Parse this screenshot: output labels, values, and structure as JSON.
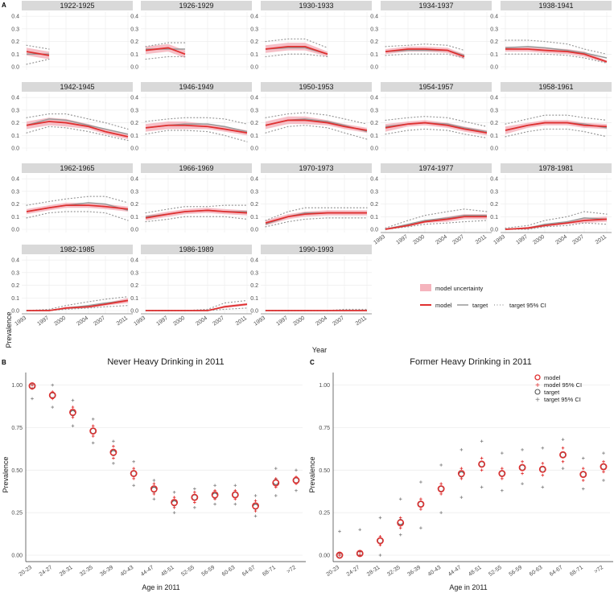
{
  "figure": {
    "panel_a_letter": "A",
    "panel_b_letter": "B",
    "panel_c_letter": "C",
    "colors": {
      "model": "#e03030",
      "band": "#f5b4bd",
      "target": "#999999",
      "strip": "#d9d9d9",
      "grid": "#ebebeb",
      "axis": "#333333"
    }
  },
  "panelA": {
    "y_axis_title": "Prevalence",
    "x_axis_title": "Year",
    "legend": {
      "band_label": "model uncertainty",
      "model_label": "model",
      "target_label": "target",
      "ci_label": "target 95% CI"
    }
  },
  "panelB": {
    "title": "Never Heavy Drinking in 2011",
    "y_axis_title": "Prevalence",
    "x_axis_title": "Age in 2011"
  },
  "panelC": {
    "title": "Former Heavy Drinking in 2011",
    "y_axis_title": "Prevalence",
    "x_axis_title": "Age in 2011",
    "legend": {
      "model": "model",
      "model_ci": "model 95% CI",
      "target": "target",
      "target_ci": "target 95% CI"
    }
  },
  "chart_data": [
    {
      "type": "line",
      "id": "cohort-prevalence",
      "title": "",
      "xlabel": "Year",
      "ylabel": "Prevalence",
      "x": [
        1993,
        1997,
        2000,
        2004,
        2007,
        2011
      ],
      "x_tick_labels": [
        "1993",
        "1997",
        "2000",
        "2004",
        "2007",
        "2011"
      ],
      "ylim": [
        0,
        0.42
      ],
      "y_ticks": [
        0.0,
        0.1,
        0.2,
        0.3,
        0.4
      ],
      "y_tick_labels": [
        "0.0",
        "0.1",
        "0.2",
        "0.3",
        "0.4"
      ],
      "facets": [
        {
          "label": "1922-1925",
          "model": [
            0.12,
            0.09,
            null,
            null,
            null,
            null
          ],
          "band": [
            0.03,
            0.03,
            null,
            null,
            null,
            null
          ],
          "target": [
            0.1,
            0.1,
            null,
            null,
            null,
            null
          ],
          "ci_lo": [
            0.02,
            0.06,
            null,
            null,
            null,
            null
          ],
          "ci_hi": [
            0.17,
            0.14,
            null,
            null,
            null,
            null
          ]
        },
        {
          "label": "1926-1929",
          "model": [
            0.13,
            0.15,
            0.1,
            null,
            null,
            null
          ],
          "band": [
            0.03,
            0.03,
            0.03,
            null,
            null,
            null
          ],
          "target": [
            0.14,
            0.14,
            0.14,
            null,
            null,
            null
          ],
          "ci_lo": [
            0.06,
            0.08,
            0.08,
            null,
            null,
            null
          ],
          "ci_hi": [
            0.16,
            0.19,
            0.19,
            null,
            null,
            null
          ]
        },
        {
          "label": "1930-1933",
          "model": [
            0.14,
            0.16,
            0.16,
            0.1,
            null,
            null
          ],
          "band": [
            0.03,
            0.03,
            0.03,
            0.02,
            null,
            null
          ],
          "target": [
            0.14,
            0.15,
            0.15,
            0.1,
            null,
            null
          ],
          "ci_lo": [
            0.08,
            0.1,
            0.1,
            0.08,
            null,
            null
          ],
          "ci_hi": [
            0.2,
            0.22,
            0.22,
            0.15,
            null,
            null
          ]
        },
        {
          "label": "1934-1937",
          "model": [
            0.12,
            0.14,
            0.14,
            0.13,
            0.08,
            null
          ],
          "band": [
            0.02,
            0.02,
            0.02,
            0.02,
            0.02,
            null
          ],
          "target": [
            0.12,
            0.13,
            0.13,
            0.13,
            0.09,
            null
          ],
          "ci_lo": [
            0.09,
            0.1,
            0.1,
            0.1,
            0.07,
            null
          ],
          "ci_hi": [
            0.16,
            0.17,
            0.18,
            0.17,
            0.13,
            null
          ]
        },
        {
          "label": "1938-1941",
          "model": [
            0.14,
            0.14,
            0.13,
            0.12,
            0.1,
            0.04
          ],
          "band": [
            0.02,
            0.02,
            0.02,
            0.02,
            0.02,
            0.01
          ],
          "target": [
            0.15,
            0.16,
            0.15,
            0.13,
            0.11,
            0.07
          ],
          "ci_lo": [
            0.1,
            0.1,
            0.1,
            0.09,
            0.07,
            0.03
          ],
          "ci_hi": [
            0.21,
            0.21,
            0.2,
            0.18,
            0.14,
            0.1
          ]
        },
        {
          "label": "1942-1945",
          "model": [
            0.18,
            0.21,
            0.2,
            0.17,
            0.13,
            0.09
          ],
          "band": [
            0.03,
            0.03,
            0.03,
            0.02,
            0.02,
            0.02
          ],
          "target": [
            0.18,
            0.23,
            0.22,
            0.18,
            0.15,
            0.11
          ],
          "ci_lo": [
            0.12,
            0.17,
            0.16,
            0.13,
            0.1,
            0.06
          ],
          "ci_hi": [
            0.24,
            0.27,
            0.27,
            0.23,
            0.2,
            0.15
          ]
        },
        {
          "label": "1946-1949",
          "model": [
            0.16,
            0.18,
            0.18,
            0.17,
            0.15,
            0.12
          ],
          "band": [
            0.03,
            0.03,
            0.03,
            0.02,
            0.02,
            0.02
          ],
          "target": [
            0.16,
            0.18,
            0.19,
            0.19,
            0.17,
            0.13
          ],
          "ci_lo": [
            0.11,
            0.14,
            0.14,
            0.13,
            0.1,
            0.05
          ],
          "ci_hi": [
            0.21,
            0.23,
            0.24,
            0.24,
            0.23,
            0.19
          ]
        },
        {
          "label": "1950-1953",
          "model": [
            0.18,
            0.22,
            0.22,
            0.2,
            0.17,
            0.14
          ],
          "band": [
            0.03,
            0.03,
            0.03,
            0.02,
            0.02,
            0.02
          ],
          "target": [
            0.18,
            0.22,
            0.23,
            0.21,
            0.18,
            0.13
          ],
          "ci_lo": [
            0.12,
            0.17,
            0.18,
            0.16,
            0.12,
            0.07
          ],
          "ci_hi": [
            0.24,
            0.27,
            0.28,
            0.26,
            0.23,
            0.19
          ]
        },
        {
          "label": "1954-1957",
          "model": [
            0.16,
            0.19,
            0.2,
            0.18,
            0.15,
            0.12
          ],
          "band": [
            0.03,
            0.02,
            0.02,
            0.02,
            0.02,
            0.02
          ],
          "target": [
            0.17,
            0.19,
            0.2,
            0.19,
            0.16,
            0.13
          ],
          "ci_lo": [
            0.11,
            0.14,
            0.15,
            0.14,
            0.11,
            0.08
          ],
          "ci_hi": [
            0.22,
            0.24,
            0.25,
            0.24,
            0.21,
            0.17
          ]
        },
        {
          "label": "1958-1961",
          "model": [
            0.14,
            0.18,
            0.2,
            0.2,
            0.18,
            0.17
          ],
          "band": [
            0.03,
            0.02,
            0.02,
            0.02,
            0.02,
            0.02
          ],
          "target": [
            0.14,
            0.18,
            0.2,
            0.2,
            0.19,
            0.16
          ],
          "ci_lo": [
            0.09,
            0.13,
            0.15,
            0.15,
            0.13,
            0.09
          ],
          "ci_hi": [
            0.19,
            0.23,
            0.26,
            0.26,
            0.24,
            0.22
          ]
        },
        {
          "label": "1962-1965",
          "model": [
            0.14,
            0.17,
            0.19,
            0.19,
            0.18,
            0.16
          ],
          "band": [
            0.02,
            0.02,
            0.02,
            0.02,
            0.02,
            0.02
          ],
          "target": [
            0.14,
            0.17,
            0.19,
            0.21,
            0.2,
            0.15
          ],
          "ci_lo": [
            0.09,
            0.13,
            0.14,
            0.14,
            0.13,
            0.07
          ],
          "ci_hi": [
            0.19,
            0.22,
            0.24,
            0.26,
            0.26,
            0.21
          ]
        },
        {
          "label": "1966-1969",
          "model": [
            0.09,
            0.12,
            0.14,
            0.15,
            0.14,
            0.13
          ],
          "band": [
            0.02,
            0.02,
            0.02,
            0.02,
            0.02,
            0.02
          ],
          "target": [
            0.1,
            0.12,
            0.14,
            0.15,
            0.14,
            0.14
          ],
          "ci_lo": [
            0.06,
            0.08,
            0.1,
            0.1,
            0.1,
            0.08
          ],
          "ci_hi": [
            0.13,
            0.16,
            0.18,
            0.18,
            0.19,
            0.19
          ]
        },
        {
          "label": "1970-1973",
          "model": [
            0.05,
            0.1,
            0.12,
            0.13,
            0.13,
            0.13
          ],
          "band": [
            0.02,
            0.02,
            0.02,
            0.02,
            0.02,
            0.02
          ],
          "target": [
            0.04,
            0.1,
            0.13,
            0.13,
            0.13,
            0.13
          ],
          "ci_lo": [
            0.02,
            0.06,
            0.08,
            0.09,
            0.09,
            0.09
          ],
          "ci_hi": [
            0.07,
            0.14,
            0.17,
            0.17,
            0.17,
            0.17
          ]
        },
        {
          "label": "1974-1977",
          "model": [
            0.0,
            0.03,
            0.06,
            0.08,
            0.1,
            0.1
          ],
          "band": [
            0.01,
            0.01,
            0.01,
            0.02,
            0.02,
            0.02
          ],
          "target": [
            0.0,
            0.04,
            0.07,
            0.09,
            0.11,
            0.11
          ],
          "ci_lo": [
            0.0,
            0.02,
            0.04,
            0.05,
            0.06,
            0.07
          ],
          "ci_hi": [
            0.01,
            0.07,
            0.11,
            0.14,
            0.16,
            0.14
          ]
        },
        {
          "label": "1978-1981",
          "model": [
            0.0,
            0.01,
            0.03,
            0.05,
            0.07,
            0.08
          ],
          "band": [
            0.0,
            0.01,
            0.01,
            0.01,
            0.02,
            0.02
          ],
          "target": [
            0.0,
            0.01,
            0.04,
            0.06,
            0.09,
            0.08
          ],
          "ci_lo": [
            0.0,
            0.0,
            0.02,
            0.03,
            0.05,
            0.04
          ],
          "ci_hi": [
            0.01,
            0.03,
            0.07,
            0.1,
            0.14,
            0.12
          ]
        },
        {
          "label": "1982-1985",
          "model": [
            0.0,
            0.0,
            0.02,
            0.03,
            0.05,
            0.08
          ],
          "band": [
            0.0,
            0.0,
            0.01,
            0.01,
            0.01,
            0.02
          ],
          "target": [
            0.0,
            0.0,
            0.02,
            0.04,
            0.06,
            0.08
          ],
          "ci_lo": [
            0.0,
            0.0,
            0.01,
            0.02,
            0.03,
            0.04
          ],
          "ci_hi": [
            0.0,
            0.01,
            0.04,
            0.07,
            0.09,
            0.11
          ]
        },
        {
          "label": "1986-1989",
          "model": [
            0.0,
            0.0,
            0.0,
            0.0,
            0.03,
            0.05
          ],
          "band": [
            0.0,
            0.0,
            0.0,
            0.0,
            0.01,
            0.01
          ],
          "target": [
            0.0,
            0.0,
            0.0,
            0.0,
            0.03,
            0.05
          ],
          "ci_lo": [
            0.0,
            0.0,
            0.0,
            0.0,
            0.01,
            0.02
          ],
          "ci_hi": [
            0.0,
            0.0,
            0.0,
            0.01,
            0.06,
            0.08
          ]
        },
        {
          "label": "1990-1993",
          "model": [
            0.0,
            0.0,
            0.0,
            0.0,
            0.0,
            0.0
          ],
          "band": [
            0.0,
            0.0,
            0.0,
            0.0,
            0.0,
            0.0
          ],
          "target": [
            0.0,
            0.0,
            0.0,
            0.0,
            0.0,
            0.0
          ],
          "ci_lo": [
            0.0,
            0.0,
            0.0,
            0.0,
            0.0,
            0.0
          ],
          "ci_hi": [
            0.0,
            0.0,
            0.0,
            0.0,
            0.01,
            0.01
          ]
        }
      ]
    },
    {
      "type": "scatter",
      "id": "never-heavy",
      "title": "Never Heavy Drinking in 2011",
      "xlabel": "Age in 2011",
      "ylabel": "Prevalence",
      "ylim": [
        0,
        1.05
      ],
      "y_ticks": [
        0.0,
        0.25,
        0.5,
        0.75,
        1.0
      ],
      "y_tick_labels": [
        "0.00",
        "0.25",
        "0.50",
        "0.75",
        "1.00"
      ],
      "categories": [
        "20-23",
        "24-27",
        "28-31",
        "32-35",
        "36-39",
        "40-43",
        "44-47",
        "48-51",
        "52-55",
        "56-59",
        "60-63",
        "64-67",
        "68-71",
        ">72"
      ],
      "model": [
        0.995,
        0.94,
        0.84,
        0.73,
        0.605,
        0.48,
        0.39,
        0.31,
        0.34,
        0.355,
        0.355,
        0.29,
        0.425,
        0.44
      ],
      "model_ci_lo": [
        0.98,
        0.92,
        0.81,
        0.7,
        0.57,
        0.45,
        0.36,
        0.28,
        0.31,
        0.33,
        0.33,
        0.26,
        0.4,
        0.42
      ],
      "model_ci_hi": [
        1.0,
        0.96,
        0.87,
        0.76,
        0.64,
        0.51,
        0.42,
        0.34,
        0.37,
        0.38,
        0.38,
        0.32,
        0.45,
        0.46
      ],
      "target": [
        0.995,
        0.94,
        0.835,
        0.73,
        0.6,
        0.48,
        0.385,
        0.305,
        0.34,
        0.35,
        0.355,
        0.285,
        0.43,
        0.44
      ],
      "target_ci_lo": [
        0.92,
        0.87,
        0.76,
        0.66,
        0.54,
        0.41,
        0.33,
        0.25,
        0.28,
        0.3,
        0.3,
        0.23,
        0.35,
        0.38
      ],
      "target_ci_hi": [
        1.0,
        1.0,
        0.91,
        0.8,
        0.67,
        0.55,
        0.44,
        0.37,
        0.39,
        0.41,
        0.41,
        0.35,
        0.51,
        0.5
      ]
    },
    {
      "type": "scatter",
      "id": "former-heavy",
      "title": "Former Heavy Drinking in 2011",
      "xlabel": "Age in 2011",
      "ylabel": "Prevalence",
      "ylim": [
        0,
        1.05
      ],
      "y_ticks": [
        0.0,
        0.25,
        0.5,
        0.75,
        1.0
      ],
      "y_tick_labels": [
        "0.00",
        "0.25",
        "0.50",
        "0.75",
        "1.00"
      ],
      "categories": [
        "20-23",
        "24-27",
        "28-31",
        "32-35",
        "36-39",
        "40-43",
        "44-47",
        "48-51",
        "52-55",
        "56-59",
        "60-63",
        "64-67",
        "68-71",
        ">72"
      ],
      "model": [
        0.0,
        0.01,
        0.085,
        0.19,
        0.3,
        0.39,
        0.48,
        0.535,
        0.48,
        0.515,
        0.505,
        0.59,
        0.475,
        0.52
      ],
      "model_ci_lo": [
        0.0,
        0.0,
        0.06,
        0.16,
        0.27,
        0.36,
        0.45,
        0.5,
        0.45,
        0.48,
        0.47,
        0.55,
        0.44,
        0.49
      ],
      "model_ci_hi": [
        0.01,
        0.02,
        0.11,
        0.22,
        0.33,
        0.42,
        0.51,
        0.57,
        0.51,
        0.55,
        0.54,
        0.63,
        0.51,
        0.55
      ],
      "target": [
        0.0,
        0.01,
        0.085,
        0.195,
        0.3,
        0.39,
        0.475,
        0.535,
        0.48,
        0.515,
        0.505,
        0.59,
        0.475,
        0.52
      ],
      "target_ci_lo": [
        0.0,
        0.0,
        0.0,
        0.12,
        0.16,
        0.25,
        0.34,
        0.4,
        0.38,
        0.42,
        0.4,
        0.51,
        0.39,
        0.44
      ],
      "target_ci_hi": [
        0.14,
        0.15,
        0.22,
        0.33,
        0.43,
        0.53,
        0.62,
        0.67,
        0.6,
        0.62,
        0.63,
        0.68,
        0.57,
        0.6
      ]
    }
  ]
}
